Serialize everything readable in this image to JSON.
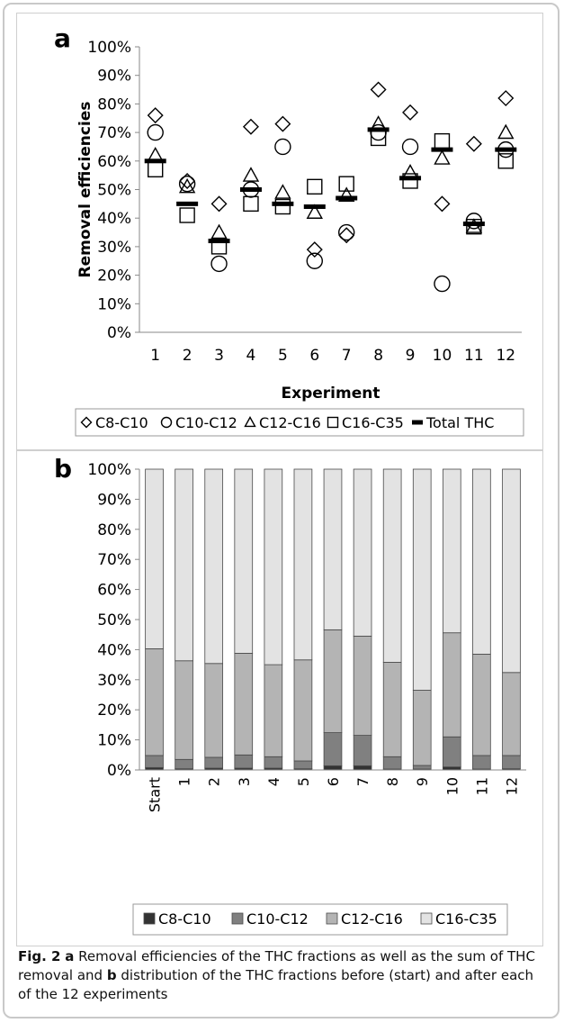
{
  "chart_data": [
    {
      "panel_label": "a",
      "type": "scatter",
      "ylabel": "Removal efficiencies",
      "xlabel": "Experiment",
      "ylim": [
        0,
        100
      ],
      "yticks": [
        "0%",
        "10%",
        "20%",
        "30%",
        "40%",
        "50%",
        "60%",
        "70%",
        "80%",
        "90%",
        "100%"
      ],
      "categories": [
        "1",
        "2",
        "3",
        "4",
        "5",
        "6",
        "7",
        "8",
        "9",
        "10",
        "11",
        "12"
      ],
      "grid": false,
      "legend_position": "bottom",
      "series": [
        {
          "name": "C8-C10",
          "marker": "diamond",
          "values": [
            76,
            53,
            45,
            72,
            73,
            29,
            34,
            85,
            77,
            45,
            66,
            82
          ]
        },
        {
          "name": "C10-C12",
          "marker": "circle",
          "values": [
            70,
            52,
            24,
            50,
            65,
            25,
            35,
            70,
            65,
            17,
            39,
            64
          ]
        },
        {
          "name": "C12-C16",
          "marker": "triangle",
          "values": [
            62,
            51,
            35,
            55,
            49,
            42,
            48,
            73,
            56,
            61,
            37,
            70
          ]
        },
        {
          "name": "C16-C35",
          "marker": "square",
          "values": [
            57,
            41,
            30,
            45,
            44,
            51,
            52,
            68,
            53,
            67,
            37,
            60
          ]
        },
        {
          "name": "Total THC",
          "marker": "dash",
          "values": [
            60,
            45,
            32,
            50,
            45,
            44,
            47,
            71,
            54,
            64,
            38,
            64
          ]
        }
      ]
    },
    {
      "panel_label": "b",
      "type": "bar",
      "stacked": true,
      "ylim": [
        0,
        100
      ],
      "yticks": [
        "0%",
        "10%",
        "20%",
        "30%",
        "40%",
        "50%",
        "60%",
        "70%",
        "80%",
        "90%",
        "100%"
      ],
      "categories": [
        "Start",
        "1",
        "2",
        "3",
        "4",
        "5",
        "6",
        "7",
        "8",
        "9",
        "10",
        "11",
        "12"
      ],
      "grid": false,
      "legend_position": "bottom",
      "series": [
        {
          "name": "C8-C10",
          "color": "#333333",
          "values": [
            0.8,
            0.4,
            0.6,
            0.6,
            0.6,
            0.4,
            1.4,
            1.4,
            0.3,
            0.3,
            1.0,
            0.3,
            0.4
          ]
        },
        {
          "name": "C10-C12",
          "color": "#808080",
          "values": [
            4.0,
            3.1,
            3.6,
            4.4,
            3.8,
            2.6,
            11.0,
            10.1,
            4.1,
            1.2,
            10.0,
            4.5,
            4.4
          ]
        },
        {
          "name": "C12-C16",
          "color": "#b4b4b4",
          "values": [
            35.5,
            32.8,
            31.2,
            33.8,
            30.6,
            33.6,
            34.2,
            33.0,
            31.4,
            25.0,
            34.6,
            33.7,
            27.6
          ]
        },
        {
          "name": "C16-C35",
          "color": "#e3e3e3",
          "values": [
            59.7,
            63.7,
            64.6,
            61.2,
            65.0,
            63.4,
            53.4,
            55.5,
            64.2,
            73.5,
            54.4,
            61.5,
            67.6
          ]
        }
      ]
    }
  ],
  "caption": {
    "fig_label": "Fig. 2",
    "a_label": "a",
    "a_text": "Removal efficiencies of the THC fractions as well as the sum of THC removal and",
    "b_label": "b",
    "b_text": "distribution of the THC fractions before (start) and after each of the 12 experiments"
  },
  "colors": {
    "frame": "#c9c9c9",
    "panel_border": "#cfcfcf",
    "axis": "#8a8a8a"
  }
}
